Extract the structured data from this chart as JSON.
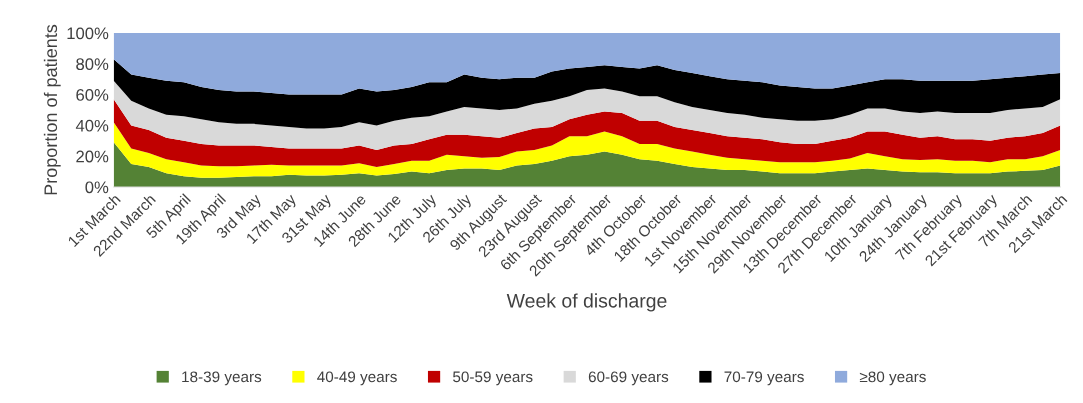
{
  "chart_data": {
    "type": "area",
    "stacked": true,
    "xlabel": "Week of discharge",
    "ylabel": "Proportion of patients",
    "categories": [
      "1st March",
      null,
      "22nd March",
      null,
      "5th April",
      null,
      "19th April",
      null,
      "3rd May",
      null,
      "17th May",
      null,
      "31st May",
      null,
      "14th June",
      null,
      "28th June",
      null,
      "12th July",
      null,
      "26th July",
      null,
      "9th August",
      null,
      "23rd August",
      null,
      "6th September",
      null,
      "20th September",
      null,
      "4th October",
      null,
      "18th October",
      null,
      "1st November",
      null,
      "15th November",
      null,
      "29th November",
      null,
      "13th December",
      null,
      "27th December",
      null,
      "10th January",
      null,
      "24th January",
      null,
      "7th February",
      null,
      "21st February",
      null,
      "7th March",
      null,
      "21st March"
    ],
    "series": [
      {
        "name": "18-39 years",
        "color": "#548235",
        "values": [
          29,
          15,
          13,
          9,
          7,
          6,
          6,
          6.5,
          7,
          7,
          8,
          7.5,
          7.5,
          8,
          9,
          7.5,
          8.5,
          10,
          9,
          11,
          12,
          12,
          11,
          14,
          15,
          17,
          20,
          21,
          23,
          21,
          18,
          17,
          15,
          13,
          12,
          11,
          11,
          10,
          9,
          9,
          9,
          10,
          11,
          12,
          11,
          10,
          9.5,
          9.5,
          9,
          9,
          9,
          10,
          10.5,
          11,
          14
        ]
      },
      {
        "name": "40-49 years",
        "color": "#ffff00",
        "values": [
          13,
          10,
          9,
          9,
          9,
          8,
          7.5,
          7,
          7,
          7.5,
          6,
          6.5,
          6.5,
          6,
          6.5,
          5.5,
          6.5,
          7,
          8,
          10,
          8,
          7,
          8.5,
          9,
          9,
          10,
          13,
          12,
          13,
          12,
          10,
          11,
          10,
          10,
          9,
          8,
          7,
          7,
          7,
          7,
          7,
          7,
          7.5,
          10,
          9,
          8,
          8,
          8.5,
          8,
          8,
          7,
          8,
          7.5,
          9,
          10
        ]
      },
      {
        "name": "50-59 years",
        "color": "#c00000",
        "values": [
          15,
          15,
          15,
          14,
          14,
          14,
          13.5,
          13.5,
          13,
          11.5,
          11,
          11,
          11,
          11,
          11.5,
          11,
          12,
          11,
          14,
          13,
          14,
          14,
          12.5,
          12,
          14,
          12,
          11,
          14,
          13,
          15,
          15,
          15,
          14,
          14,
          14,
          14,
          14,
          14,
          13,
          12,
          12,
          13,
          13.5,
          14,
          16,
          16,
          14.5,
          15,
          14,
          14,
          14,
          14,
          15,
          15,
          16
        ]
      },
      {
        "name": "60-69 years",
        "color": "#d9d9d9",
        "values": [
          12,
          16,
          14,
          15,
          16,
          16,
          15,
          14,
          14,
          14,
          14,
          13,
          13,
          14,
          15,
          16,
          16,
          17,
          15,
          15,
          18,
          18,
          18,
          16,
          16,
          17,
          15,
          16,
          15,
          14,
          16,
          16,
          16,
          15,
          15,
          15,
          15,
          14,
          15,
          15,
          15,
          14,
          15,
          15,
          15,
          15,
          16,
          16,
          17,
          17,
          18,
          18,
          18,
          17,
          17
        ]
      },
      {
        "name": "70-79 years",
        "color": "#000000",
        "values": [
          14,
          17,
          20,
          22,
          22,
          21,
          21,
          21,
          21,
          21,
          21,
          22,
          22,
          21,
          22,
          22,
          20,
          20,
          22,
          19,
          21,
          20,
          20,
          20,
          17,
          19,
          18,
          15,
          15,
          16,
          18,
          20,
          21,
          22,
          22,
          22,
          22,
          23,
          22,
          22,
          21,
          20,
          19,
          17,
          19,
          21,
          21,
          20,
          21,
          21,
          22,
          21,
          21,
          21,
          17
        ]
      },
      {
        "name": "≥80 years",
        "color": "#8faadc",
        "values": [
          17,
          27,
          29,
          31,
          32,
          35,
          37,
          38,
          38,
          39,
          40,
          40,
          40,
          40,
          36,
          38,
          37,
          35,
          32,
          32,
          27,
          29,
          30,
          29,
          29,
          25,
          23,
          22,
          21,
          22,
          23,
          21,
          24,
          26,
          28,
          30,
          31,
          32,
          34,
          35,
          36,
          36,
          34,
          32,
          30,
          30,
          31,
          31,
          31,
          31,
          30,
          29,
          28,
          27,
          26
        ]
      }
    ],
    "ylim": [
      0,
      100
    ],
    "yticks": [
      {
        "value": 0,
        "label": "0%"
      },
      {
        "value": 20,
        "label": "20%"
      },
      {
        "value": 40,
        "label": "40%"
      },
      {
        "value": 60,
        "label": "60%"
      },
      {
        "value": 80,
        "label": "80%"
      },
      {
        "value": 100,
        "label": "100%"
      }
    ],
    "legend": "bottom"
  }
}
